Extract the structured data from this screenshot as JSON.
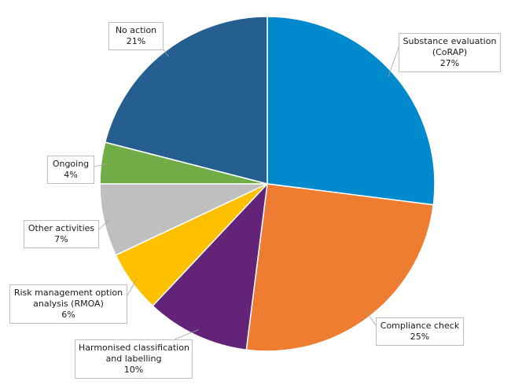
{
  "chart_data": {
    "type": "pie",
    "title": "",
    "unit": "%",
    "slices": [
      {
        "label": "Substance evaluation (CoRAP)",
        "label_lines": [
          "Substance evaluation",
          "(CoRAP)"
        ],
        "value": 27,
        "value_label": "27%",
        "color": "#0089cc"
      },
      {
        "label": "Compliance check",
        "label_lines": [
          "Compliance check"
        ],
        "value": 25,
        "value_label": "25%",
        "color": "#ee7d31"
      },
      {
        "label": "Harmonised classification and labelling",
        "label_lines": [
          "Harmonised classification",
          "and labelling"
        ],
        "value": 10,
        "value_label": "10%",
        "color": "#632379"
      },
      {
        "label": "Risk management option analysis (RMOA)",
        "label_lines": [
          "Risk management option",
          "analysis (RMOA)"
        ],
        "value": 6,
        "value_label": "6%",
        "color": "#ffc000"
      },
      {
        "label": "Other activities",
        "label_lines": [
          "Other activities"
        ],
        "value": 7,
        "value_label": "7%",
        "color": "#bfbfbf"
      },
      {
        "label": "Ongoing",
        "label_lines": [
          "Ongoing"
        ],
        "value": 4,
        "value_label": "4%",
        "color": "#70ad47"
      },
      {
        "label": "No action",
        "label_lines": [
          "No action"
        ],
        "value": 21,
        "value_label": "21%",
        "color": "#255e91"
      }
    ]
  }
}
